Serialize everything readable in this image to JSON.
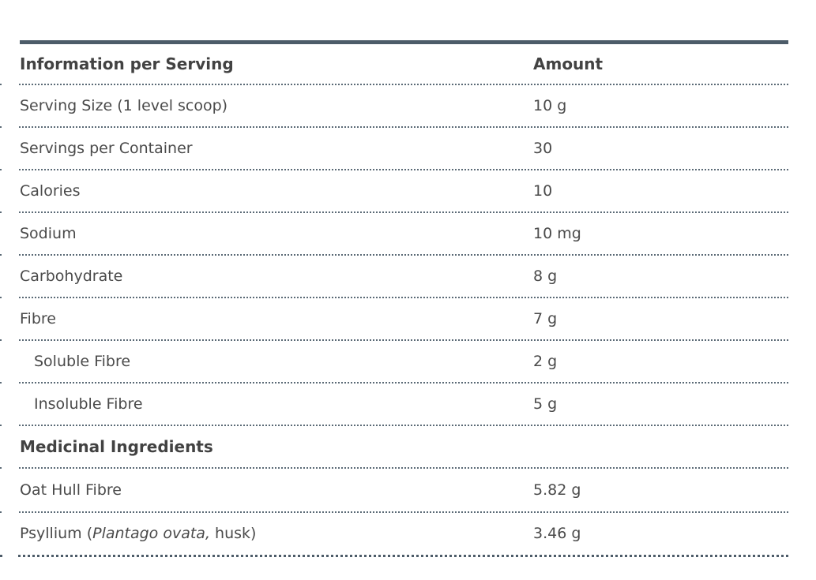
{
  "theme": {
    "page-bg": "#ffffff",
    "text-color": "#4a4a4a",
    "bold-text-color": "#424242",
    "rule-color": "#4d5c69",
    "dot-color": "#5b6a76"
  },
  "table": {
    "header": {
      "info_label": "Information per Serving",
      "amount_label": "Amount"
    },
    "rows": [
      {
        "label": "Serving Size (1 level scoop)",
        "amount": "10 g"
      },
      {
        "label": "Servings per Container",
        "amount": "30"
      },
      {
        "label": "Calories",
        "amount": "10"
      },
      {
        "label": "Sodium",
        "amount": "10 mg"
      },
      {
        "label": "Carbohydrate",
        "amount": "8 g"
      },
      {
        "label": "Fibre",
        "amount": "7 g"
      },
      {
        "label": "Soluble Fibre",
        "amount": "2 g",
        "indent": true
      },
      {
        "label": "Insoluble Fibre",
        "amount": "5 g",
        "indent": true
      },
      {
        "label": "Medicinal Ingredients",
        "amount": "",
        "section_header": true
      },
      {
        "label": "Oat Hull Fibre",
        "amount": "5.82 g"
      },
      {
        "label": "Psyllium (Plantago ovata, husk)",
        "label_parts": [
          {
            "text": "Psyllium ("
          },
          {
            "text": "Plantago ovata,",
            "italic": true
          },
          {
            "text": " husk)"
          }
        ],
        "amount": "3.46 g"
      }
    ]
  }
}
